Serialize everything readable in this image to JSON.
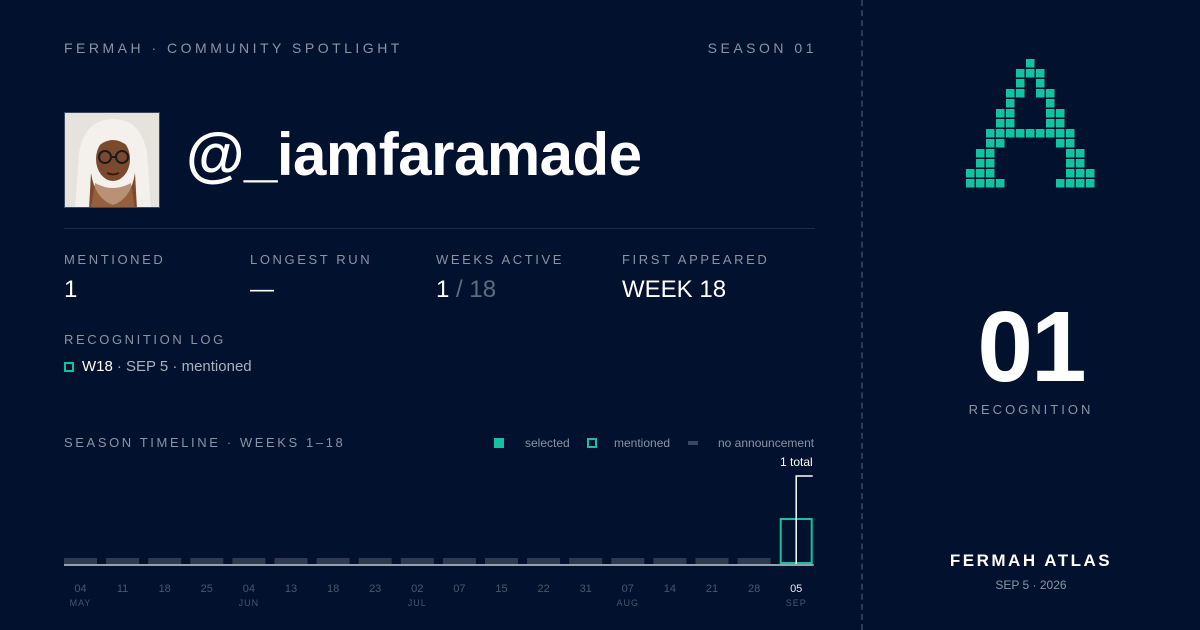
{
  "header": {
    "brand_line": "FERMAH · COMMUNITY SPOTLIGHT",
    "season": "SEASON 01"
  },
  "profile": {
    "handle": "@_iamfaramade"
  },
  "stats": [
    {
      "label": "MENTIONED",
      "value": "1",
      "suffix": ""
    },
    {
      "label": "LONGEST RUN",
      "value": "—",
      "suffix": ""
    },
    {
      "label": "WEEKS ACTIVE",
      "value": "1",
      "suffix": " / 18"
    },
    {
      "label": "FIRST APPEARED",
      "value": "WEEK 18",
      "suffix": ""
    }
  ],
  "recognition_log": {
    "title": "RECOGNITION LOG",
    "entries": [
      {
        "week": "W18",
        "detail": "· SEP 5 · mentioned"
      }
    ]
  },
  "timeline": {
    "title": "SEASON TIMELINE · WEEKS 1–18",
    "legend": {
      "selected": "selected",
      "mentioned": "mentioned",
      "none": "no announcement"
    },
    "total_label": "1 total",
    "colors": {
      "accent": "#12c2a0",
      "none": "#2e3a52",
      "cumulative": "#ffffff"
    }
  },
  "chart_data": {
    "type": "bar",
    "title": "SEASON TIMELINE · WEEKS 1–18",
    "categories": [
      "04",
      "11",
      "18",
      "25",
      "04",
      "13",
      "18",
      "23",
      "02",
      "07",
      "15",
      "22",
      "31",
      "07",
      "14",
      "21",
      "28",
      "05"
    ],
    "month_labels": [
      "MAY",
      "",
      "",
      "",
      "JUN",
      "",
      "",
      "",
      "JUL",
      "",
      "",
      "",
      "",
      "AUG",
      "",
      "",
      "",
      "SEP"
    ],
    "series": [
      {
        "name": "mentioned",
        "values": [
          0,
          0,
          0,
          0,
          0,
          0,
          0,
          0,
          0,
          0,
          0,
          0,
          0,
          0,
          0,
          0,
          0,
          1
        ]
      },
      {
        "name": "selected",
        "values": [
          0,
          0,
          0,
          0,
          0,
          0,
          0,
          0,
          0,
          0,
          0,
          0,
          0,
          0,
          0,
          0,
          0,
          0
        ]
      }
    ],
    "cumulative": [
      0,
      0,
      0,
      0,
      0,
      0,
      0,
      0,
      0,
      0,
      0,
      0,
      0,
      0,
      0,
      0,
      0,
      1
    ],
    "highlight_index": 17
  },
  "side": {
    "count": "01",
    "count_label": "RECOGNITION",
    "brand": "FERMAH ATLAS",
    "date": "SEP 5 · 2026",
    "logo_icon": "pixel-a-logo"
  }
}
